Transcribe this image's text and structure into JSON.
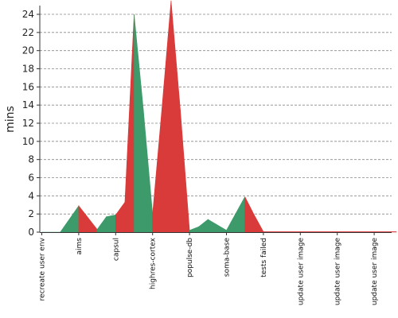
{
  "chart_data": {
    "type": "area",
    "ylabel": "mins",
    "xlabel": "",
    "title": "",
    "ylim": [
      0,
      25
    ],
    "yticks": [
      0,
      2,
      4,
      6,
      8,
      10,
      12,
      14,
      16,
      18,
      20,
      22,
      24
    ],
    "grid": "horizontal-dashed",
    "categories": [
      "recreate user env",
      "aims",
      "capsul",
      "highres-cortex",
      "populse-db",
      "soma-base",
      "tests failed",
      "update user image",
      "update user image",
      "update user image"
    ],
    "points": [
      {
        "x": 0,
        "y": 0,
        "status": "passed"
      },
      {
        "x": 0.5,
        "y": 0,
        "status": "passed"
      },
      {
        "x": 1,
        "y": 2.9,
        "status": "passed"
      },
      {
        "x": 1.25,
        "y": 1.6,
        "status": "failed"
      },
      {
        "x": 1.5,
        "y": 0.3,
        "status": "failed"
      },
      {
        "x": 1.75,
        "y": 1.7,
        "status": "passed"
      },
      {
        "x": 2,
        "y": 1.9,
        "status": "passed"
      },
      {
        "x": 2.25,
        "y": 3.3,
        "status": "failed"
      },
      {
        "x": 2.5,
        "y": 24.0,
        "status": "failed"
      },
      {
        "x": 2.75,
        "y": 13.5,
        "status": "passed"
      },
      {
        "x": 3,
        "y": 2.0,
        "status": "passed"
      },
      {
        "x": 3.25,
        "y": 13.5,
        "status": "failed"
      },
      {
        "x": 3.5,
        "y": 25.5,
        "status": "failed"
      },
      {
        "x": 3.75,
        "y": 13.5,
        "status": "failed"
      },
      {
        "x": 4,
        "y": 0.2,
        "status": "failed"
      },
      {
        "x": 4.25,
        "y": 0.6,
        "status": "passed"
      },
      {
        "x": 4.5,
        "y": 1.4,
        "status": "passed"
      },
      {
        "x": 5,
        "y": 0.2,
        "status": "passed"
      },
      {
        "x": 5.5,
        "y": 3.9,
        "status": "passed"
      },
      {
        "x": 5.75,
        "y": 1.9,
        "status": "failed"
      },
      {
        "x": 6,
        "y": 0.05,
        "status": "failed"
      },
      {
        "x": 9.6,
        "y": 0.05,
        "status": "failed"
      }
    ],
    "colors": {
      "passed": "#3d9a6a",
      "failed": "#d93a3a"
    }
  }
}
